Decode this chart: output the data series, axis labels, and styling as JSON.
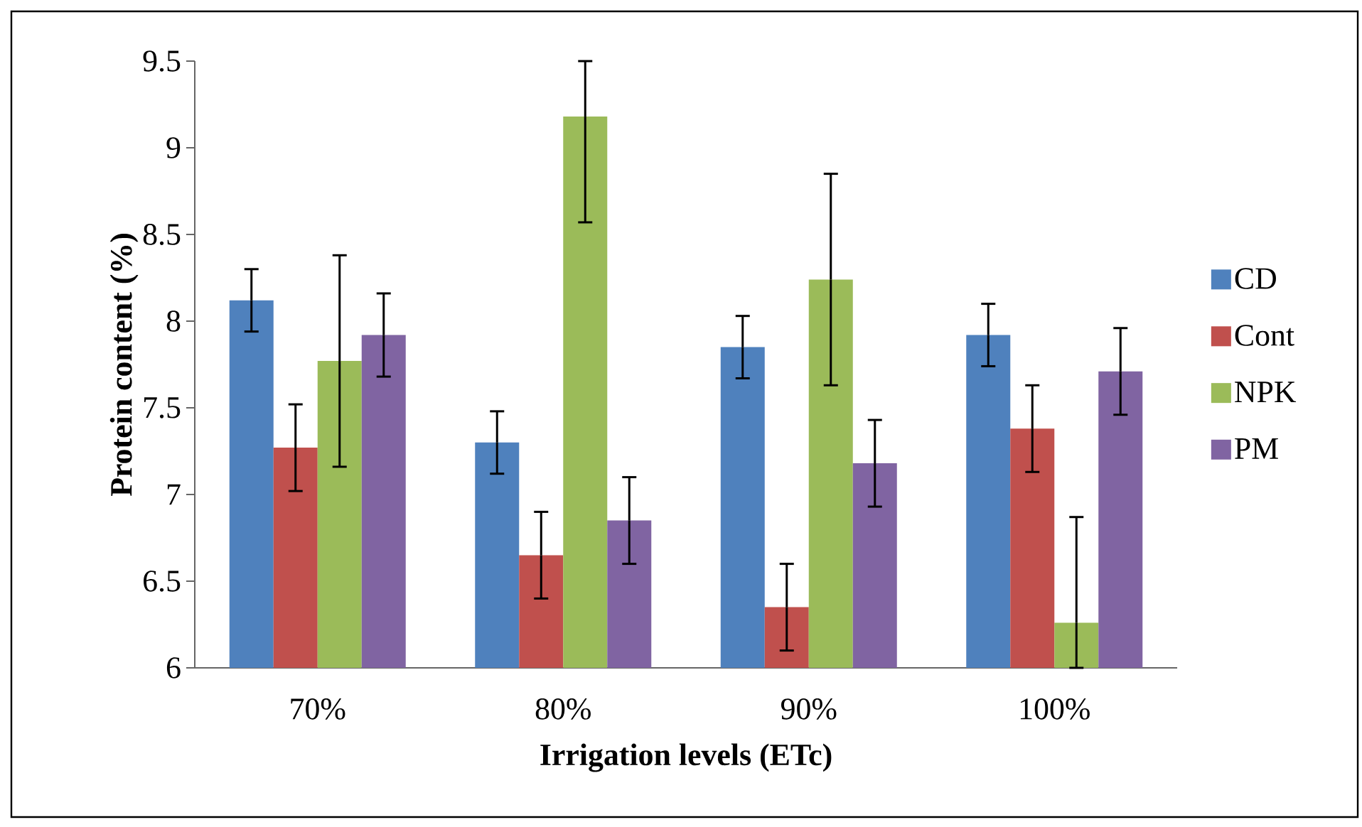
{
  "chart_data": {
    "type": "bar",
    "xlabel": "Irrigation levels (ETc)",
    "ylabel": "Protein content (%)",
    "categories": [
      "70%",
      "80%",
      "90%",
      "100%"
    ],
    "series": [
      {
        "name": "CD",
        "color": "#4f81bd",
        "values": [
          8.12,
          7.3,
          7.85,
          7.92
        ],
        "errors": [
          0.18,
          0.18,
          0.18,
          0.18
        ]
      },
      {
        "name": "Cont",
        "color": "#c0504d",
        "values": [
          7.27,
          6.65,
          6.35,
          7.38
        ],
        "errors": [
          0.25,
          0.25,
          0.25,
          0.25
        ]
      },
      {
        "name": "NPK",
        "color": "#9bbb59",
        "values": [
          7.77,
          9.18,
          8.24,
          6.26
        ],
        "errors": [
          0.61,
          [
            8.57,
            9.5
          ],
          0.61,
          [
            6,
            6.87
          ]
        ]
      },
      {
        "name": "PM",
        "color": "#8064a2",
        "values": [
          7.92,
          6.85,
          7.18,
          7.71
        ],
        "errors": [
          0.24,
          0.25,
          0.25,
          0.25
        ]
      }
    ],
    "ylim": [
      6,
      9.5
    ],
    "yticks": [
      6,
      6.5,
      7,
      7.5,
      8,
      8.5,
      9,
      9.5
    ],
    "legend": "right"
  }
}
